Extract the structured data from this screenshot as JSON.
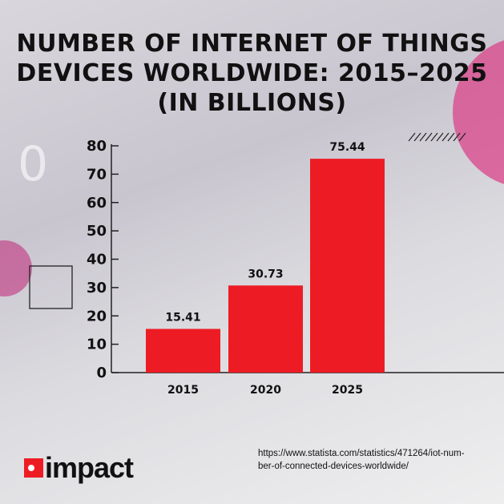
{
  "chart_data": {
    "type": "bar",
    "title": "NUMBER OF INTERNET OF THINGS DEVICES WORLDWIDE: 2015–2025 (IN BILLIONS)",
    "categories": [
      "2015",
      "2020",
      "2025"
    ],
    "values": [
      15.41,
      30.73,
      75.44
    ],
    "data_labels": [
      "15.41",
      "30.73",
      "75.44"
    ],
    "xlabel": "",
    "ylabel": "",
    "ylim": [
      0,
      80
    ],
    "yticks": [
      "0",
      "10",
      "20",
      "30",
      "40",
      "50",
      "60",
      "70",
      "80"
    ],
    "grid": false,
    "bar_color": "#ed1c24"
  },
  "source": "https://www.statista.com/statistics/471264/iot-number-of-connected-devices-worldwide/",
  "source_lines": [
    "https://www.statista.com/statistics/471264/iot-num-",
    "ber-of-connected-devices-worldwide/"
  ],
  "logo": {
    "text": "impact",
    "color": "#ed1c24"
  }
}
